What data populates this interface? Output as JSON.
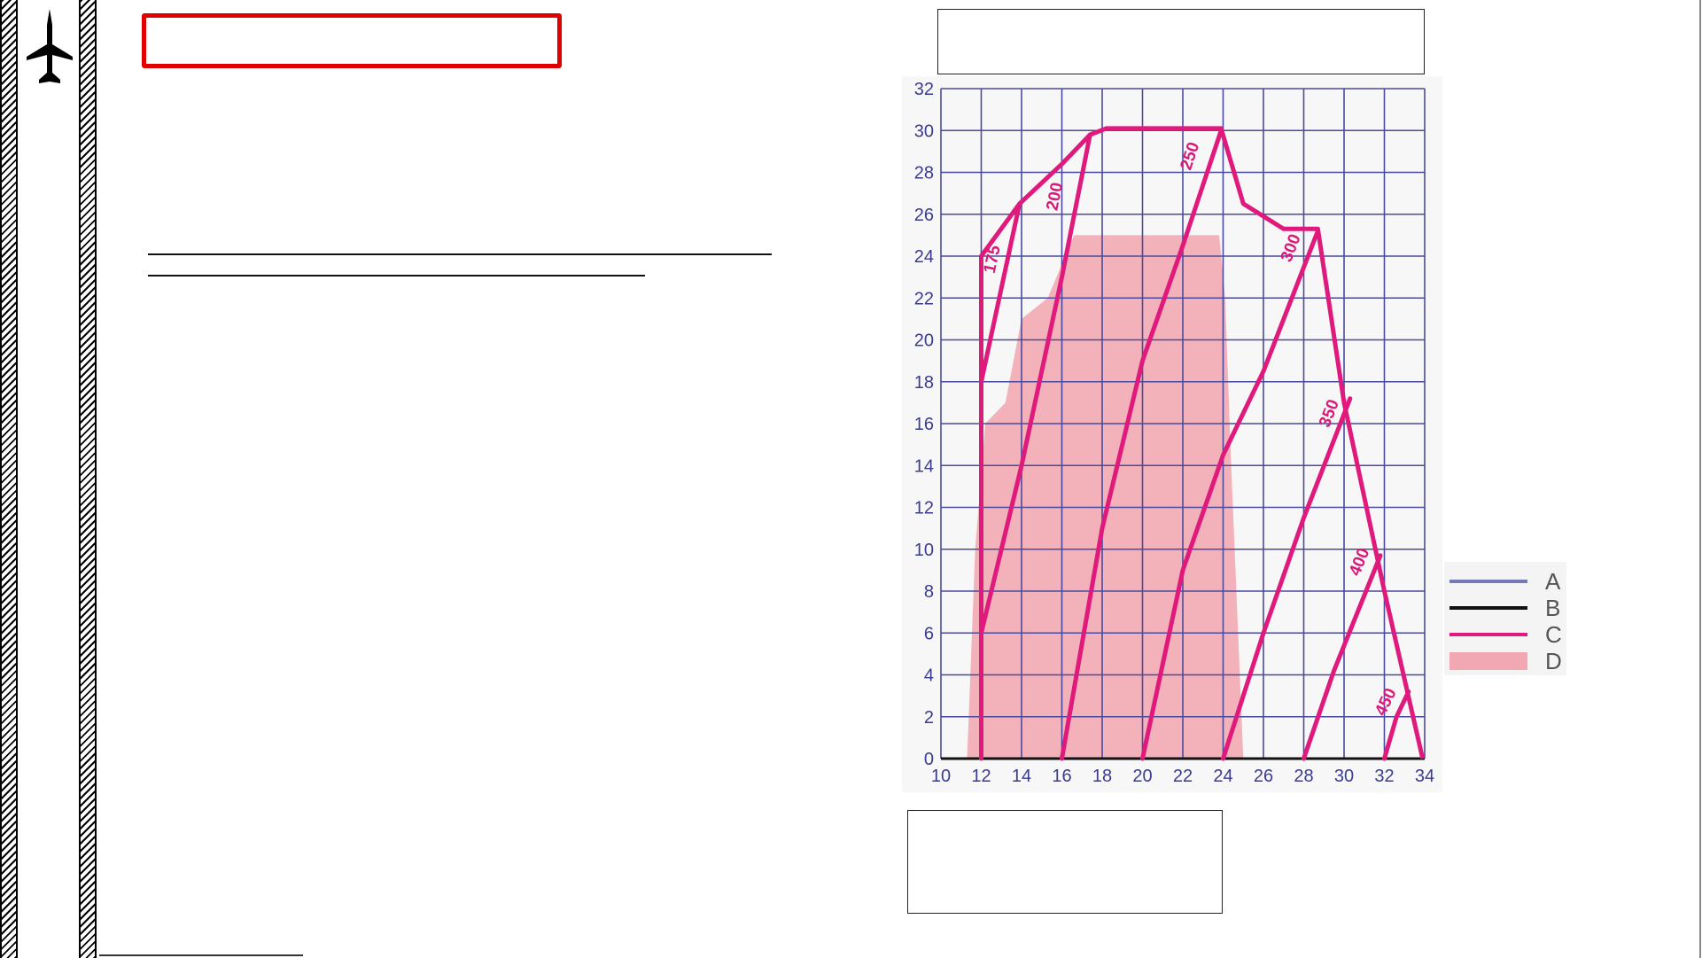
{
  "colors": {
    "grid": "#4a4a9e",
    "axis_black": "#111111",
    "curve_magenta": "#e0197c",
    "envelope_pink": "#f2a8b2",
    "title_box_red": "#e10000"
  },
  "icons": {
    "aircraft": "jet-aircraft-icon"
  },
  "chart_data": {
    "type": "line",
    "x_ticks": [
      "10",
      "12",
      "14",
      "16",
      "18",
      "20",
      "22",
      "24",
      "26",
      "28",
      "30",
      "32",
      "34"
    ],
    "y_ticks": [
      "0",
      "2",
      "4",
      "6",
      "8",
      "10",
      "12",
      "14",
      "16",
      "18",
      "20",
      "22",
      "24",
      "26",
      "28",
      "30",
      "32"
    ],
    "xlim": [
      10,
      34
    ],
    "ylim": [
      0,
      32
    ],
    "grid": true,
    "legend_position": "right",
    "legend": [
      {
        "label": "A",
        "kind": "line",
        "color": "#7777bb"
      },
      {
        "label": "B",
        "kind": "line",
        "color": "#111111"
      },
      {
        "label": "C",
        "kind": "line",
        "color": "#e0197c"
      },
      {
        "label": "D",
        "kind": "area",
        "color": "#f2a8b2"
      }
    ],
    "envelope_area": {
      "name": "D",
      "points": [
        [
          11.3,
          0
        ],
        [
          11.7,
          10
        ],
        [
          12.2,
          16
        ],
        [
          13.2,
          17
        ],
        [
          14.0,
          21
        ],
        [
          15.3,
          22
        ],
        [
          16.6,
          25
        ],
        [
          23.8,
          25
        ],
        [
          24.1,
          22
        ],
        [
          24.4,
          14
        ],
        [
          25.0,
          0
        ]
      ]
    },
    "curves": [
      {
        "label": "175",
        "points": [
          [
            12,
            0
          ],
          [
            12,
            18
          ],
          [
            13.9,
            26.5
          ]
        ],
        "label_at": [
          12.8,
          23.8
        ]
      },
      {
        "label": "200",
        "points": [
          [
            12,
            6
          ],
          [
            14,
            14
          ],
          [
            16,
            23
          ],
          [
            17.4,
            29.8
          ]
        ],
        "label_at": [
          15.9,
          26.8
        ]
      },
      {
        "label": "250",
        "points": [
          [
            16,
            0
          ],
          [
            18,
            11
          ],
          [
            20,
            19
          ],
          [
            22,
            24.5
          ],
          [
            23.9,
            30
          ]
        ],
        "label_at": [
          22.6,
          28.7
        ]
      },
      {
        "label": "300",
        "points": [
          [
            20,
            0
          ],
          [
            22,
            9
          ],
          [
            24,
            14.5
          ],
          [
            26,
            18.5
          ],
          [
            28.7,
            25.2
          ]
        ],
        "label_at": [
          27.6,
          24.3
        ]
      },
      {
        "label": "350",
        "points": [
          [
            24,
            0
          ],
          [
            26,
            6
          ],
          [
            28,
            11.5
          ],
          [
            30.3,
            17.2
          ]
        ],
        "label_at": [
          29.5,
          16.4
        ]
      },
      {
        "label": "400",
        "points": [
          [
            28,
            0
          ],
          [
            29.5,
            4.2
          ],
          [
            31.8,
            9.7
          ]
        ],
        "label_at": [
          31,
          9.3
        ]
      },
      {
        "label": "450",
        "points": [
          [
            32,
            0
          ],
          [
            32.6,
            2
          ],
          [
            33.2,
            3.2
          ]
        ],
        "label_at": [
          32.3,
          2.6
        ]
      }
    ],
    "boundary": {
      "points": [
        [
          12,
          0
        ],
        [
          12,
          24
        ],
        [
          13.9,
          26.5
        ],
        [
          16,
          28.4
        ],
        [
          17.4,
          29.8
        ],
        [
          18.2,
          30.1
        ],
        [
          21.5,
          30.1
        ],
        [
          23.9,
          30.1
        ],
        [
          25,
          26.5
        ],
        [
          27,
          25.3
        ],
        [
          28.7,
          25.3
        ],
        [
          30,
          17
        ],
        [
          32,
          8
        ],
        [
          33.9,
          0
        ]
      ]
    }
  }
}
